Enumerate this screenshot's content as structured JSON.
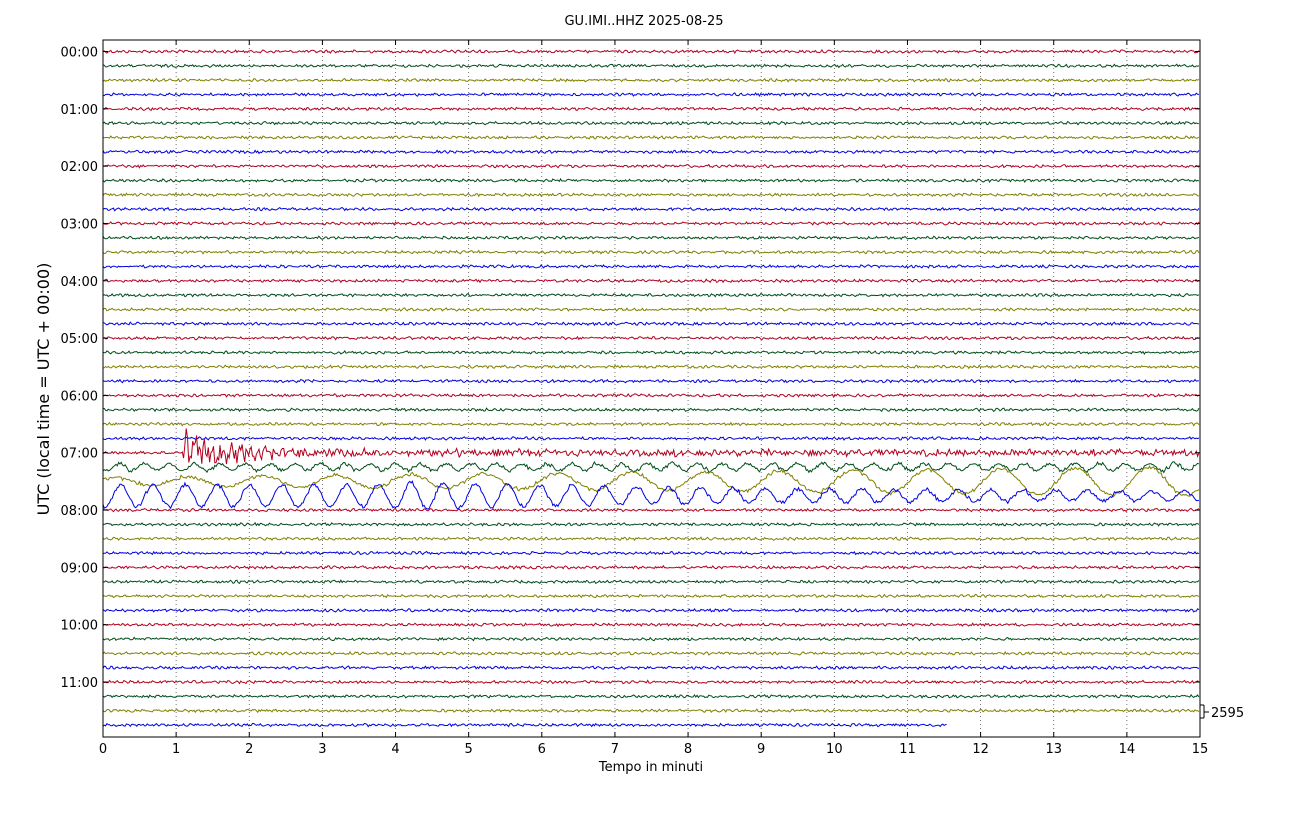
{
  "chart_data": {
    "type": "line",
    "title": "GU.IMI..HHZ 2025-08-25",
    "xlabel": "Tempo in minuti",
    "ylabel": "UTC (local time = UTC + 00:00)",
    "xlim": [
      0,
      15
    ],
    "x_ticks": [
      "0",
      "1",
      "2",
      "3",
      "4",
      "5",
      "6",
      "7",
      "8",
      "9",
      "10",
      "11",
      "12",
      "13",
      "14",
      "15"
    ],
    "y_ticks": [
      "00:00",
      "01:00",
      "02:00",
      "03:00",
      "04:00",
      "05:00",
      "06:00",
      "07:00",
      "08:00",
      "09:00",
      "10:00",
      "11:00"
    ],
    "scale_label": "2595",
    "grid": "vertical dotted",
    "trace_colors": [
      "#b0001e",
      "#004d1a",
      "#808000",
      "#0000e0"
    ],
    "traces_per_hour": 4,
    "trace_minutes": 15,
    "last_trace_end_minute": 11.55,
    "events": [
      {
        "trace": 28,
        "start_minute": 1.1,
        "end_minute": 15,
        "type": "earthquake onset"
      },
      {
        "trace": 29,
        "start_minute": 0,
        "end_minute": 15,
        "type": "coda"
      },
      {
        "trace": 30,
        "start_minute": 0,
        "end_minute": 15,
        "type": "coda"
      },
      {
        "trace": 31,
        "start_minute": 0,
        "end_minute": 15,
        "type": "coda"
      }
    ]
  }
}
